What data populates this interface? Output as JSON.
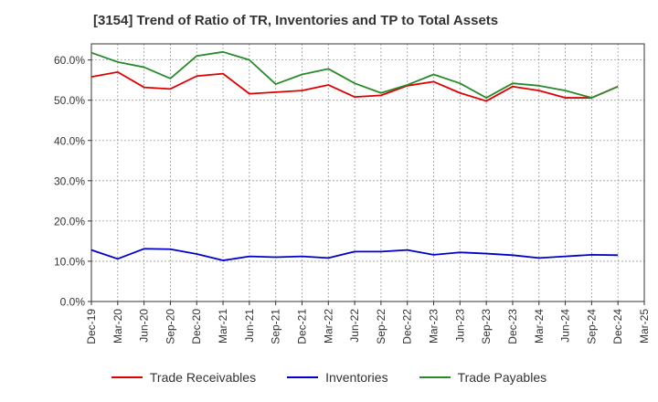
{
  "chart_data": {
    "type": "line",
    "title": "[3154]  Trend of Ratio of TR, Inventories and TP to Total Assets",
    "x_tick_labels": [
      "Dec-19",
      "Mar-20",
      "Jun-20",
      "Sep-20",
      "Dec-20",
      "Mar-21",
      "Jun-21",
      "Sep-21",
      "Dec-21",
      "Mar-22",
      "Jun-22",
      "Sep-22",
      "Dec-22",
      "Mar-23",
      "Jun-23",
      "Sep-23",
      "Dec-23",
      "Mar-24",
      "Jun-24",
      "Sep-24",
      "Dec-24",
      "Mar-25"
    ],
    "x": [
      "Dec-19",
      "Mar-20",
      "Jun-20",
      "Sep-20",
      "Dec-20",
      "Mar-21",
      "Jun-21",
      "Sep-21",
      "Dec-21",
      "Mar-22",
      "Jun-22",
      "Sep-22",
      "Dec-22",
      "Mar-23",
      "Jun-23",
      "Sep-23",
      "Dec-23",
      "Mar-24",
      "Jun-24",
      "Sep-24",
      "Dec-24"
    ],
    "y_tick_labels": [
      "0.0%",
      "10.0%",
      "20.0%",
      "30.0%",
      "40.0%",
      "50.0%",
      "60.0%"
    ],
    "ylim": [
      0,
      64
    ],
    "grid": true,
    "legend_position": "bottom",
    "series": [
      {
        "name": "Trade Receivables",
        "color": "#e00000",
        "values": [
          55.8,
          57.0,
          53.2,
          52.8,
          56.0,
          56.6,
          51.6,
          52.0,
          52.4,
          53.8,
          50.8,
          51.2,
          53.6,
          54.6,
          51.8,
          49.8,
          53.4,
          52.4,
          50.6,
          50.6,
          53.4
        ]
      },
      {
        "name": "Inventories",
        "color": "#0000cc",
        "values": [
          12.8,
          10.6,
          13.1,
          13.0,
          11.8,
          10.2,
          11.2,
          11.0,
          11.2,
          10.8,
          12.4,
          12.4,
          12.8,
          11.6,
          12.2,
          11.9,
          11.5,
          10.8,
          11.2,
          11.6,
          11.5
        ]
      },
      {
        "name": "Trade Payables",
        "color": "#2a8a2a",
        "values": [
          61.8,
          59.5,
          58.2,
          55.4,
          61.0,
          62.0,
          60.0,
          54.0,
          56.4,
          57.8,
          54.2,
          51.8,
          53.8,
          56.4,
          54.2,
          50.6,
          54.2,
          53.6,
          52.4,
          50.6,
          53.4
        ]
      }
    ]
  }
}
